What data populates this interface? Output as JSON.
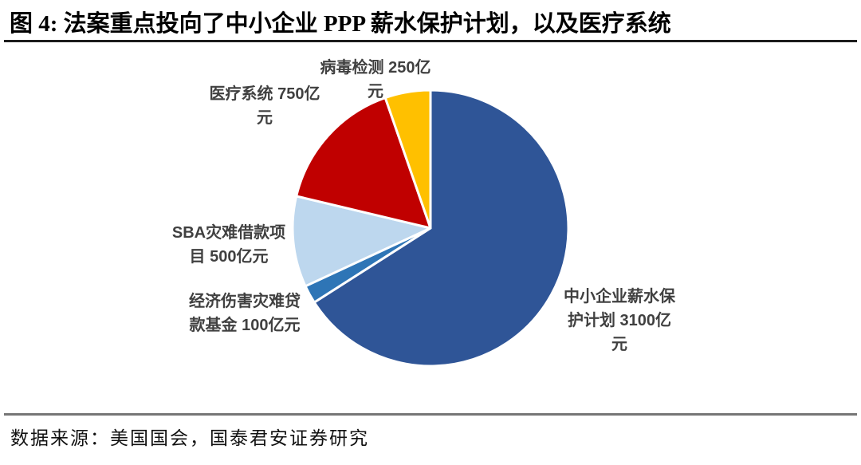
{
  "header": {
    "title": "图 4: 法案重点投向了中小企业 PPP 薪水保护计划，以及医疗系统"
  },
  "footer": {
    "source": "数据来源：美国国会，国泰君安证券研究"
  },
  "chart_data": {
    "type": "pie",
    "title": "法案重点投向了中小企业 PPP 薪水保护计划，以及医疗系统",
    "unit": "亿元",
    "start_angle_deg": 0,
    "direction": "clockwise",
    "legend_position": "none",
    "slice_border_color": "#ffffff",
    "slices": [
      {
        "name": "中小企业薪水保护计划",
        "value": 3100,
        "color": "#2F5597",
        "label_lines": [
          "中小企业薪水保",
          "护计划 3100亿",
          "元"
        ]
      },
      {
        "name": "经济伤害灾难贷款基金",
        "value": 100,
        "color": "#2E75B6",
        "label_lines": [
          "经济伤害灾难贷",
          "款基金 100亿元"
        ]
      },
      {
        "name": "SBA灾难借款项目",
        "value": 500,
        "color": "#BDD7EE",
        "label_lines": [
          "SBA灾难借款项",
          "目 500亿元"
        ]
      },
      {
        "name": "医疗系统",
        "value": 750,
        "color": "#C00000",
        "label_lines": [
          "医疗系统 750亿",
          "元"
        ]
      },
      {
        "name": "病毒检测",
        "value": 250,
        "color": "#FFC000",
        "label_lines": [
          "病毒检测 250亿",
          "元"
        ]
      }
    ]
  }
}
